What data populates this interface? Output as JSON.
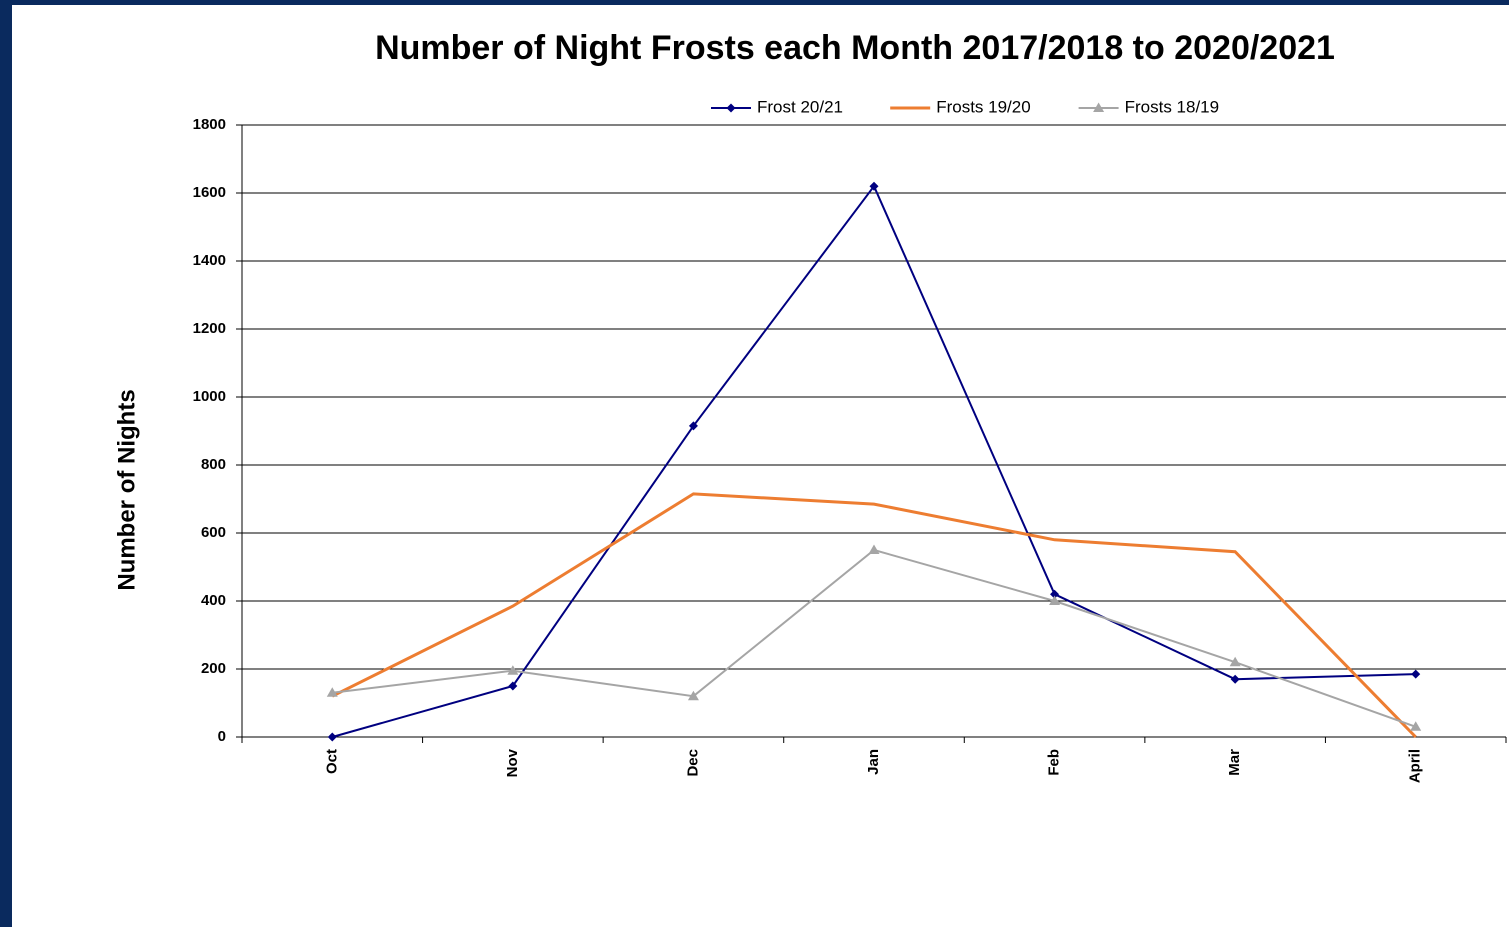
{
  "chart_data": {
    "type": "line",
    "title": "Number of  Night Frosts each Month 2017/2018 to 2020/2021",
    "y_label": "Number of Nights",
    "categories": [
      "Oct",
      "Nov",
      "Dec",
      "Jan",
      "Feb",
      "Mar",
      "April"
    ],
    "series": [
      {
        "name": "Frost 20/21",
        "color": "#000080",
        "marker": "diamond",
        "values": [
          0,
          150,
          915,
          1620,
          420,
          170,
          185
        ]
      },
      {
        "name": "Frosts 19/20",
        "color": "#ed7d31",
        "marker": null,
        "values": [
          120,
          385,
          715,
          685,
          580,
          545,
          0
        ]
      },
      {
        "name": "Frosts 18/19",
        "color": "#a5a5a5",
        "marker": "triangle",
        "values": [
          130,
          195,
          120,
          550,
          400,
          220,
          30
        ]
      }
    ],
    "ylim": [
      0,
      1800
    ],
    "yticks": [
      0,
      200,
      400,
      600,
      800,
      1000,
      1200,
      1400,
      1600,
      1800
    ],
    "grid": true,
    "legend": "top"
  }
}
